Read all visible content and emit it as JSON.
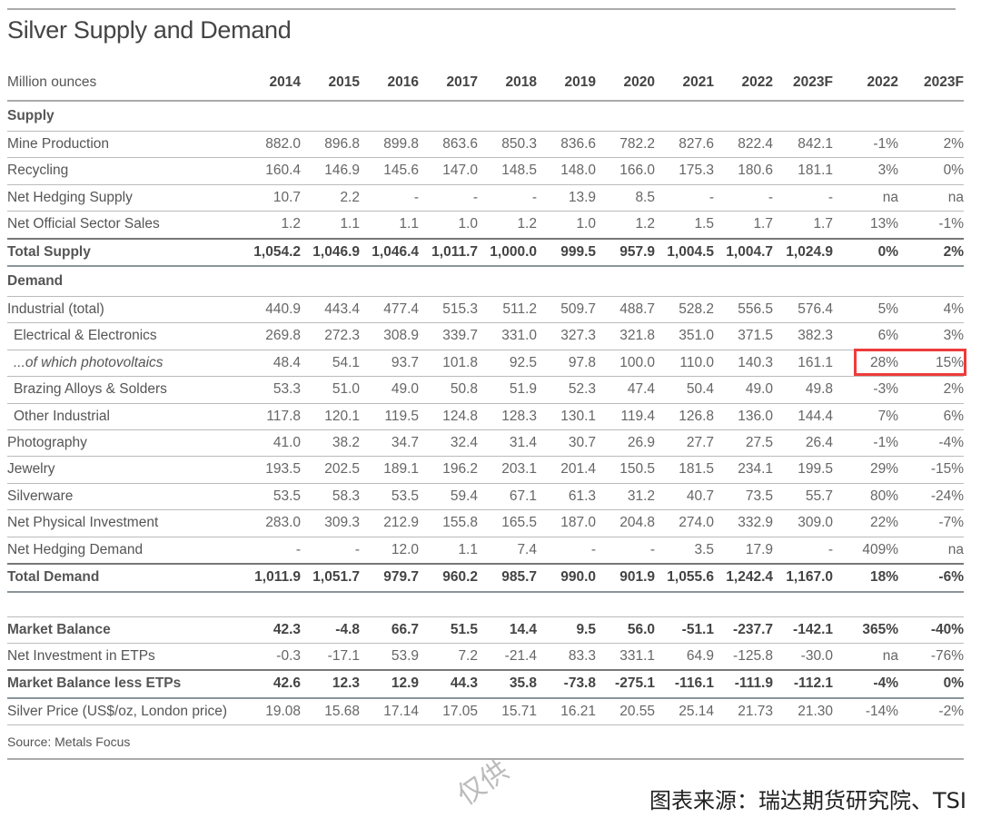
{
  "title": "Silver Supply and Demand",
  "header": {
    "unit_label": "Million ounces",
    "years": [
      "2014",
      "2015",
      "2016",
      "2017",
      "2018",
      "2019",
      "2020",
      "2021",
      "2022",
      "2023F"
    ],
    "pct_cols": [
      "2022",
      "2023F"
    ]
  },
  "sections": {
    "supply": "Supply",
    "demand": "Demand"
  },
  "rows": {
    "mine_production": {
      "label": "Mine Production",
      "v": [
        "882.0",
        "896.8",
        "899.8",
        "863.6",
        "850.3",
        "836.6",
        "782.2",
        "827.6",
        "822.4",
        "842.1",
        "-1%",
        "2%"
      ]
    },
    "recycling": {
      "label": "Recycling",
      "v": [
        "160.4",
        "146.9",
        "145.6",
        "147.0",
        "148.5",
        "148.0",
        "166.0",
        "175.3",
        "180.6",
        "181.1",
        "3%",
        "0%"
      ]
    },
    "net_hedging_supply": {
      "label": "Net Hedging Supply",
      "v": [
        "10.7",
        "2.2",
        "-",
        "-",
        "-",
        "13.9",
        "8.5",
        "-",
        "-",
        "-",
        "na",
        "na"
      ]
    },
    "net_official_sector_sales": {
      "label": "Net Official Sector Sales",
      "v": [
        "1.2",
        "1.1",
        "1.1",
        "1.0",
        "1.2",
        "1.0",
        "1.2",
        "1.5",
        "1.7",
        "1.7",
        "13%",
        "-1%"
      ]
    },
    "total_supply": {
      "label": "Total Supply",
      "v": [
        "1,054.2",
        "1,046.9",
        "1,046.4",
        "1,011.7",
        "1,000.0",
        "999.5",
        "957.9",
        "1,004.5",
        "1,004.7",
        "1,024.9",
        "0%",
        "2%"
      ]
    },
    "industrial_total": {
      "label": "Industrial (total)",
      "v": [
        "440.9",
        "443.4",
        "477.4",
        "515.3",
        "511.2",
        "509.7",
        "488.7",
        "528.2",
        "556.5",
        "576.4",
        "5%",
        "4%"
      ]
    },
    "electrical_electronics": {
      "label": "Electrical & Electronics",
      "v": [
        "269.8",
        "272.3",
        "308.9",
        "339.7",
        "331.0",
        "327.3",
        "321.8",
        "351.0",
        "371.5",
        "382.3",
        "6%",
        "3%"
      ]
    },
    "photovoltaics": {
      "label": "...of which photovoltaics",
      "v": [
        "48.4",
        "54.1",
        "93.7",
        "101.8",
        "92.5",
        "97.8",
        "100.0",
        "110.0",
        "140.3",
        "161.1",
        "28%",
        "15%"
      ]
    },
    "brazing_alloys_solders": {
      "label": "Brazing Alloys & Solders",
      "v": [
        "53.3",
        "51.0",
        "49.0",
        "50.8",
        "51.9",
        "52.3",
        "47.4",
        "50.4",
        "49.0",
        "49.8",
        "-3%",
        "2%"
      ]
    },
    "other_industrial": {
      "label": "Other Industrial",
      "v": [
        "117.8",
        "120.1",
        "119.5",
        "124.8",
        "128.3",
        "130.1",
        "119.4",
        "126.8",
        "136.0",
        "144.4",
        "7%",
        "6%"
      ]
    },
    "photography": {
      "label": "Photography",
      "v": [
        "41.0",
        "38.2",
        "34.7",
        "32.4",
        "31.4",
        "30.7",
        "26.9",
        "27.7",
        "27.5",
        "26.4",
        "-1%",
        "-4%"
      ]
    },
    "jewelry": {
      "label": "Jewelry",
      "v": [
        "193.5",
        "202.5",
        "189.1",
        "196.2",
        "203.1",
        "201.4",
        "150.5",
        "181.5",
        "234.1",
        "199.5",
        "29%",
        "-15%"
      ]
    },
    "silverware": {
      "label": "Silverware",
      "v": [
        "53.5",
        "58.3",
        "53.5",
        "59.4",
        "67.1",
        "61.3",
        "31.2",
        "40.7",
        "73.5",
        "55.7",
        "80%",
        "-24%"
      ]
    },
    "net_physical_investment": {
      "label": "Net Physical Investment",
      "v": [
        "283.0",
        "309.3",
        "212.9",
        "155.8",
        "165.5",
        "187.0",
        "204.8",
        "274.0",
        "332.9",
        "309.0",
        "22%",
        "-7%"
      ]
    },
    "net_hedging_demand": {
      "label": "Net Hedging Demand",
      "v": [
        "-",
        "-",
        "12.0",
        "1.1",
        "7.4",
        "-",
        "-",
        "3.5",
        "17.9",
        "-",
        "409%",
        "na"
      ]
    },
    "total_demand": {
      "label": "Total Demand",
      "v": [
        "1,011.9",
        "1,051.7",
        "979.7",
        "960.2",
        "985.7",
        "990.0",
        "901.9",
        "1,055.6",
        "1,242.4",
        "1,167.0",
        "18%",
        "-6%"
      ]
    },
    "market_balance": {
      "label": "Market Balance",
      "v": [
        "42.3",
        "-4.8",
        "66.7",
        "51.5",
        "14.4",
        "9.5",
        "56.0",
        "-51.1",
        "-237.7",
        "-142.1",
        "365%",
        "-40%"
      ]
    },
    "net_investment_etps": {
      "label": "Net Investment in ETPs",
      "v": [
        "-0.3",
        "-17.1",
        "53.9",
        "7.2",
        "-21.4",
        "83.3",
        "331.1",
        "64.9",
        "-125.8",
        "-30.0",
        "na",
        "-76%"
      ]
    },
    "market_balance_less_etps": {
      "label": "Market Balance less ETPs",
      "v": [
        "42.6",
        "12.3",
        "12.9",
        "44.3",
        "35.8",
        "-73.8",
        "-275.1",
        "-116.1",
        "-111.9",
        "-112.1",
        "-4%",
        "0%"
      ]
    },
    "silver_price": {
      "label": "Silver Price (US$/oz, London price)",
      "v": [
        "19.08",
        "15.68",
        "17.14",
        "17.05",
        "15.71",
        "16.21",
        "20.55",
        "25.14",
        "21.73",
        "21.30",
        "-14%",
        "-2%"
      ]
    }
  },
  "source_note": "Source: Metals Focus",
  "watermark": "仅供",
  "caption": "图表来源：瑞达期货研究院、TSI",
  "colors": {
    "highlight": "#ee3b3b",
    "rule": "#aaaaaa",
    "text": "#555555"
  },
  "chart_data": {
    "type": "table",
    "title": "Silver Supply and Demand",
    "unit": "Million ounces",
    "columns": [
      "2014",
      "2015",
      "2016",
      "2017",
      "2018",
      "2019",
      "2020",
      "2021",
      "2022",
      "2023F",
      "2022 %chg",
      "2023F %chg"
    ],
    "rows": [
      {
        "name": "Mine Production",
        "values": [
          882.0,
          896.8,
          899.8,
          863.6,
          850.3,
          836.6,
          782.2,
          827.6,
          822.4,
          842.1,
          "-1%",
          "2%"
        ]
      },
      {
        "name": "Recycling",
        "values": [
          160.4,
          146.9,
          145.6,
          147.0,
          148.5,
          148.0,
          166.0,
          175.3,
          180.6,
          181.1,
          "3%",
          "0%"
        ]
      },
      {
        "name": "Net Hedging Supply",
        "values": [
          10.7,
          2.2,
          null,
          null,
          null,
          13.9,
          8.5,
          null,
          null,
          null,
          "na",
          "na"
        ]
      },
      {
        "name": "Net Official Sector Sales",
        "values": [
          1.2,
          1.1,
          1.1,
          1.0,
          1.2,
          1.0,
          1.2,
          1.5,
          1.7,
          1.7,
          "13%",
          "-1%"
        ]
      },
      {
        "name": "Total Supply",
        "values": [
          1054.2,
          1046.9,
          1046.4,
          1011.7,
          1000.0,
          999.5,
          957.9,
          1004.5,
          1004.7,
          1024.9,
          "0%",
          "2%"
        ]
      },
      {
        "name": "Industrial (total)",
        "values": [
          440.9,
          443.4,
          477.4,
          515.3,
          511.2,
          509.7,
          488.7,
          528.2,
          556.5,
          576.4,
          "5%",
          "4%"
        ]
      },
      {
        "name": "Electrical & Electronics",
        "values": [
          269.8,
          272.3,
          308.9,
          339.7,
          331.0,
          327.3,
          321.8,
          351.0,
          371.5,
          382.3,
          "6%",
          "3%"
        ]
      },
      {
        "name": "...of which photovoltaics",
        "values": [
          48.4,
          54.1,
          93.7,
          101.8,
          92.5,
          97.8,
          100.0,
          110.0,
          140.3,
          161.1,
          "28%",
          "15%"
        ]
      },
      {
        "name": "Brazing Alloys & Solders",
        "values": [
          53.3,
          51.0,
          49.0,
          50.8,
          51.9,
          52.3,
          47.4,
          50.4,
          49.0,
          49.8,
          "-3%",
          "2%"
        ]
      },
      {
        "name": "Other Industrial",
        "values": [
          117.8,
          120.1,
          119.5,
          124.8,
          128.3,
          130.1,
          119.4,
          126.8,
          136.0,
          144.4,
          "7%",
          "6%"
        ]
      },
      {
        "name": "Photography",
        "values": [
          41.0,
          38.2,
          34.7,
          32.4,
          31.4,
          30.7,
          26.9,
          27.7,
          27.5,
          26.4,
          "-1%",
          "-4%"
        ]
      },
      {
        "name": "Jewelry",
        "values": [
          193.5,
          202.5,
          189.1,
          196.2,
          203.1,
          201.4,
          150.5,
          181.5,
          234.1,
          199.5,
          "29%",
          "-15%"
        ]
      },
      {
        "name": "Silverware",
        "values": [
          53.5,
          58.3,
          53.5,
          59.4,
          67.1,
          61.3,
          31.2,
          40.7,
          73.5,
          55.7,
          "80%",
          "-24%"
        ]
      },
      {
        "name": "Net Physical Investment",
        "values": [
          283.0,
          309.3,
          212.9,
          155.8,
          165.5,
          187.0,
          204.8,
          274.0,
          332.9,
          309.0,
          "22%",
          "-7%"
        ]
      },
      {
        "name": "Net Hedging Demand",
        "values": [
          null,
          null,
          12.0,
          1.1,
          7.4,
          null,
          null,
          3.5,
          17.9,
          null,
          "409%",
          "na"
        ]
      },
      {
        "name": "Total Demand",
        "values": [
          1011.9,
          1051.7,
          979.7,
          960.2,
          985.7,
          990.0,
          901.9,
          1055.6,
          1242.4,
          1167.0,
          "18%",
          "-6%"
        ]
      },
      {
        "name": "Market Balance",
        "values": [
          42.3,
          -4.8,
          66.7,
          51.5,
          14.4,
          9.5,
          56.0,
          -51.1,
          -237.7,
          -142.1,
          "365%",
          "-40%"
        ]
      },
      {
        "name": "Net Investment in ETPs",
        "values": [
          -0.3,
          -17.1,
          53.9,
          7.2,
          -21.4,
          83.3,
          331.1,
          64.9,
          -125.8,
          -30.0,
          "na",
          "-76%"
        ]
      },
      {
        "name": "Market Balance less ETPs",
        "values": [
          42.6,
          12.3,
          12.9,
          44.3,
          35.8,
          -73.8,
          -275.1,
          -116.1,
          -111.9,
          -112.1,
          "-4%",
          "0%"
        ]
      },
      {
        "name": "Silver Price (US$/oz, London price)",
        "values": [
          19.08,
          15.68,
          17.14,
          17.05,
          15.71,
          16.21,
          20.55,
          25.14,
          21.73,
          21.3,
          "-14%",
          "-2%"
        ]
      }
    ],
    "highlighted_cells": [
      {
        "row": "...of which photovoltaics",
        "columns": [
          "2022 %chg",
          "2023F %chg"
        ]
      }
    ],
    "source": "Source: Metals Focus"
  }
}
